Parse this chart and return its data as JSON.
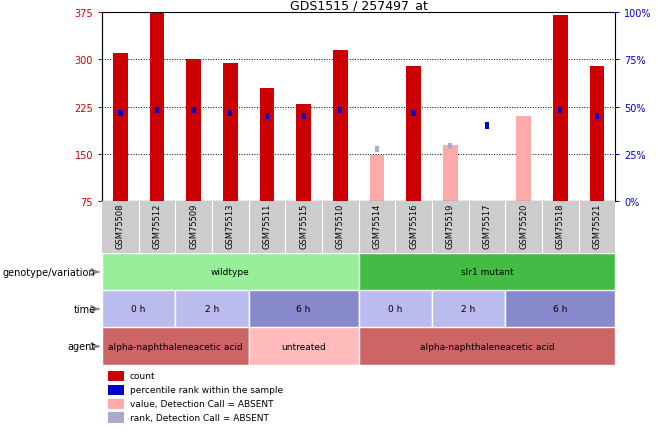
{
  "title": "GDS1515 / 257497_at",
  "samples": [
    "GSM75508",
    "GSM75512",
    "GSM75509",
    "GSM75513",
    "GSM75511",
    "GSM75515",
    "GSM75510",
    "GSM75514",
    "GSM75516",
    "GSM75519",
    "GSM75517",
    "GSM75520",
    "GSM75518",
    "GSM75521"
  ],
  "bar_values": [
    310,
    375,
    300,
    295,
    255,
    230,
    315,
    null,
    290,
    null,
    null,
    null,
    370,
    290
  ],
  "bar_absent_values": [
    null,
    null,
    null,
    null,
    null,
    null,
    null,
    148,
    null,
    165,
    null,
    210,
    null,
    null
  ],
  "rank_values": [
    215,
    220,
    220,
    215,
    210,
    210,
    220,
    null,
    215,
    null,
    195,
    null,
    220,
    210
  ],
  "rank_absent_values": [
    null,
    null,
    null,
    null,
    null,
    null,
    null,
    158,
    null,
    163,
    null,
    null,
    null,
    null
  ],
  "bar_color": "#cc0000",
  "bar_absent_color": "#ffaaaa",
  "rank_color": "#0000cc",
  "rank_absent_color": "#aaaacc",
  "ylim_left": [
    75,
    375
  ],
  "ylim_right": [
    0,
    100
  ],
  "yticks_left": [
    75,
    150,
    225,
    300,
    375
  ],
  "yticks_right": [
    0,
    25,
    50,
    75,
    100
  ],
  "yticklabels_right": [
    "0%",
    "25%",
    "50%",
    "75%",
    "100%"
  ],
  "genotype_groups": [
    {
      "label": "wildtype",
      "start": 0,
      "end": 7,
      "color": "#99ee99"
    },
    {
      "label": "slr1 mutant",
      "start": 7,
      "end": 14,
      "color": "#44bb44"
    }
  ],
  "time_groups": [
    {
      "label": "0 h",
      "start": 0,
      "end": 2,
      "color": "#bbbbee"
    },
    {
      "label": "2 h",
      "start": 2,
      "end": 4,
      "color": "#bbbbee"
    },
    {
      "label": "6 h",
      "start": 4,
      "end": 7,
      "color": "#8888cc"
    },
    {
      "label": "0 h",
      "start": 7,
      "end": 9,
      "color": "#bbbbee"
    },
    {
      "label": "2 h",
      "start": 9,
      "end": 11,
      "color": "#bbbbee"
    },
    {
      "label": "6 h",
      "start": 11,
      "end": 14,
      "color": "#8888cc"
    }
  ],
  "agent_groups": [
    {
      "label": "alpha-naphthaleneacetic acid",
      "start": 0,
      "end": 4,
      "color": "#cc6666"
    },
    {
      "label": "untreated",
      "start": 4,
      "end": 7,
      "color": "#ffbbbb"
    },
    {
      "label": "alpha-naphthaleneacetic acid",
      "start": 7,
      "end": 14,
      "color": "#cc6666"
    }
  ],
  "legend_items": [
    {
      "color": "#cc0000",
      "label": "count"
    },
    {
      "color": "#0000cc",
      "label": "percentile rank within the sample"
    },
    {
      "color": "#ffaaaa",
      "label": "value, Detection Call = ABSENT"
    },
    {
      "color": "#aaaacc",
      "label": "rank, Detection Call = ABSENT"
    }
  ],
  "row_labels": [
    "genotype/variation",
    "time",
    "agent"
  ],
  "chart_bg": "#ffffff",
  "plot_area_bg": "#ffffff",
  "xtick_bg": "#cccccc"
}
